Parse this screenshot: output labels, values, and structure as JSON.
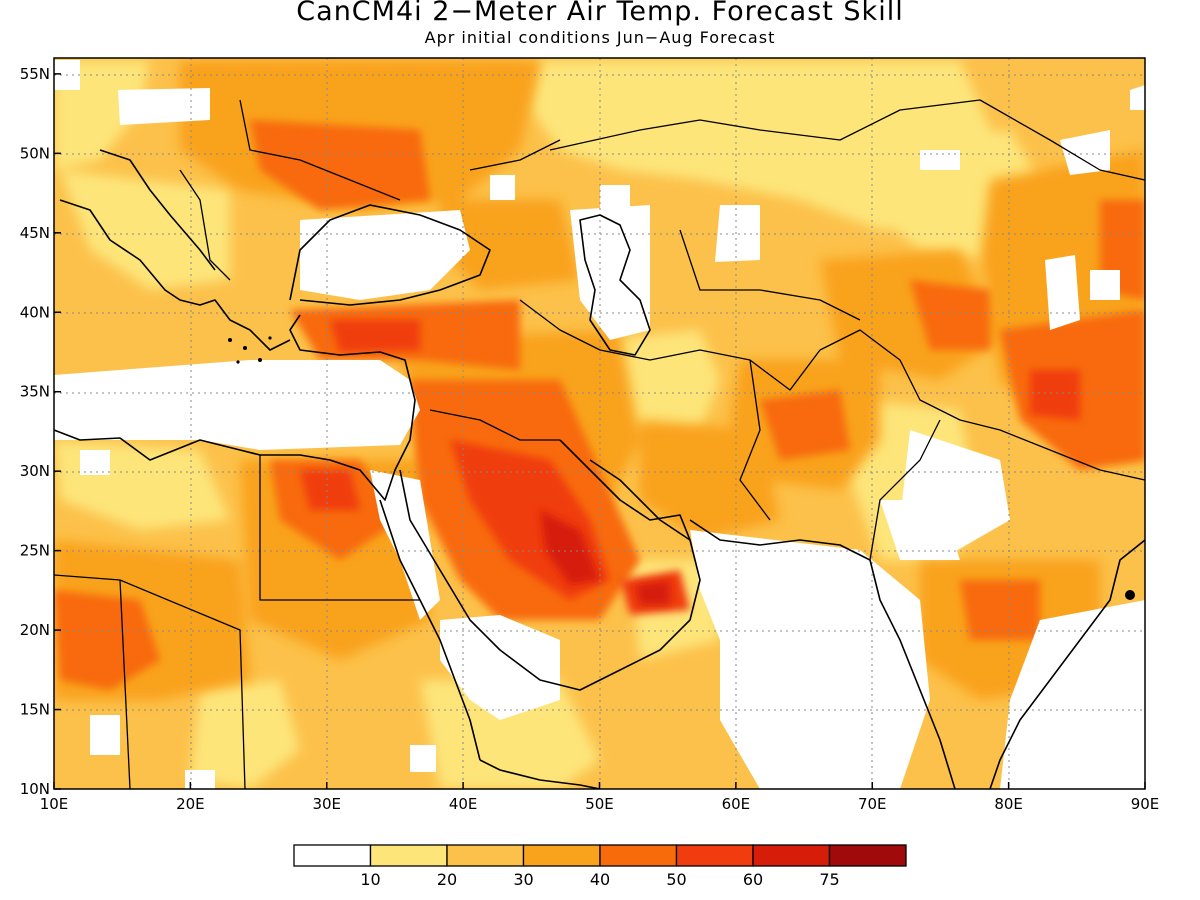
{
  "title": "CanCM4i 2−Meter Air Temp. Forecast Skill",
  "subtitle": "Apr initial conditions   Jun−Aug Forecast",
  "map": {
    "lon_range": [
      10,
      90
    ],
    "lat_range": [
      10,
      56
    ],
    "lon_ticks": [
      {
        "value": 10,
        "label": "10E"
      },
      {
        "value": 20,
        "label": "20E"
      },
      {
        "value": 30,
        "label": "30E"
      },
      {
        "value": 40,
        "label": "40E"
      },
      {
        "value": 50,
        "label": "50E"
      },
      {
        "value": 60,
        "label": "60E"
      },
      {
        "value": 70,
        "label": "70E"
      },
      {
        "value": 80,
        "label": "80E"
      },
      {
        "value": 90,
        "label": "90E"
      }
    ],
    "lat_ticks": [
      {
        "value": 10,
        "label": "10N"
      },
      {
        "value": 15,
        "label": "15N"
      },
      {
        "value": 20,
        "label": "20N"
      },
      {
        "value": 25,
        "label": "25N"
      },
      {
        "value": 30,
        "label": "30N"
      },
      {
        "value": 35,
        "label": "35N"
      },
      {
        "value": 40,
        "label": "40N"
      },
      {
        "value": 45,
        "label": "45N"
      },
      {
        "value": 50,
        "label": "50N"
      },
      {
        "value": 55,
        "label": "55N"
      }
    ],
    "grid": "dotted"
  },
  "colorbar": {
    "bins": [
      {
        "color": "#ffffff"
      },
      {
        "color": "#fde57a"
      },
      {
        "color": "#fcc14a"
      },
      {
        "color": "#f9a21c"
      },
      {
        "color": "#f86b0a"
      },
      {
        "color": "#f03c0e"
      },
      {
        "color": "#d61d0a"
      },
      {
        "color": "#a00a0a"
      }
    ],
    "labels": [
      "10",
      "20",
      "30",
      "40",
      "50",
      "60",
      "75"
    ]
  }
}
